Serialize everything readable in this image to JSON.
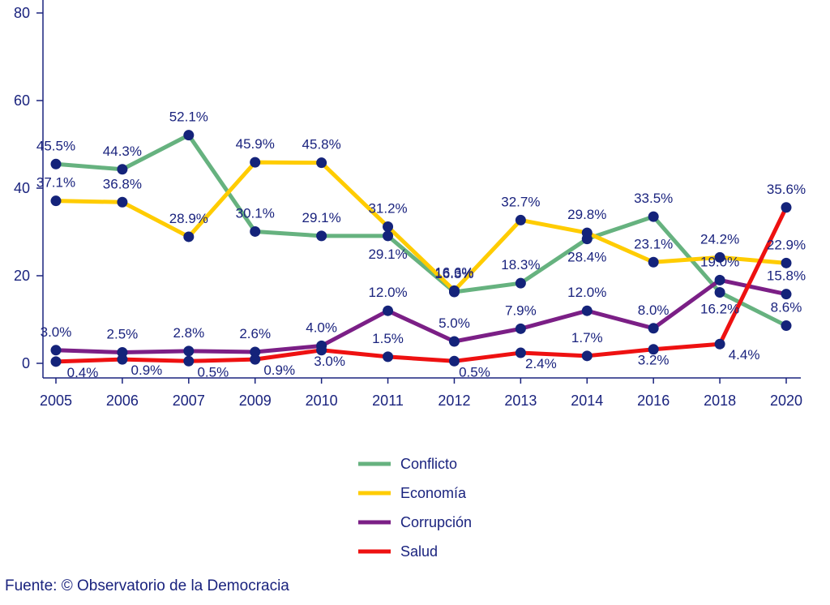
{
  "source_note": "Fuente: © Observatorio de la Democracia",
  "chart_data": {
    "type": "line",
    "categories": [
      "2005",
      "2006",
      "2007",
      "2009",
      "2010",
      "2011",
      "2012",
      "2013",
      "2014",
      "2016",
      "2018",
      "2020"
    ],
    "ylim": [
      0,
      80
    ],
    "yticks": [
      0,
      20,
      40,
      60,
      80
    ],
    "title": "",
    "xlabel": "",
    "ylabel": "",
    "grid": false,
    "legend_position": "bottom",
    "marker_color": "#14237a",
    "axis_color": "#1a237e",
    "series": [
      {
        "name": "Conflicto",
        "color": "#66b27f",
        "values": [
          45.5,
          44.3,
          52.1,
          30.1,
          29.1,
          29.1,
          16.3,
          18.3,
          28.4,
          33.5,
          16.2,
          8.6
        ],
        "labels": [
          "45.5%",
          "44.3%",
          "52.1%",
          "30.1%",
          "29.1%",
          "29.1%",
          "16.3%",
          "18.3%",
          "28.4%",
          "33.5%",
          "16.2%",
          "8.6%"
        ]
      },
      {
        "name": "Economía",
        "color": "#ffcc00",
        "values": [
          37.1,
          36.8,
          28.9,
          45.9,
          45.8,
          31.2,
          16.6,
          32.7,
          29.8,
          23.1,
          24.2,
          22.9
        ],
        "labels": [
          "37.1%",
          "36.8%",
          "28.9%",
          "45.9%",
          "45.8%",
          "31.2%",
          "16.6%",
          "32.7%",
          "29.8%",
          "23.1%",
          "24.2%",
          "22.9%"
        ]
      },
      {
        "name": "Corrupción",
        "color": "#7b1f86",
        "values": [
          3.0,
          2.5,
          2.8,
          2.6,
          4.0,
          12.0,
          5.0,
          7.9,
          12.0,
          8.0,
          19.0,
          15.8
        ],
        "labels": [
          "3.0%",
          "2.5%",
          "2.8%",
          "2.6%",
          "4.0%",
          "12.0%",
          "5.0%",
          "7.9%",
          "12.0%",
          "8.0%",
          "19.0%",
          "15.8%"
        ]
      },
      {
        "name": "Salud",
        "color": "#ee1111",
        "values": [
          0.4,
          0.9,
          0.5,
          0.9,
          3.0,
          1.5,
          0.5,
          2.4,
          1.7,
          3.2,
          4.4,
          35.6
        ],
        "labels": [
          "0.4%",
          "0.9%",
          "0.5%",
          "0.9%",
          "3.0%",
          "1.5%",
          "0.5%",
          "2.4%",
          "1.7%",
          "3.2%",
          "4.4%",
          "35.6%"
        ]
      }
    ]
  }
}
